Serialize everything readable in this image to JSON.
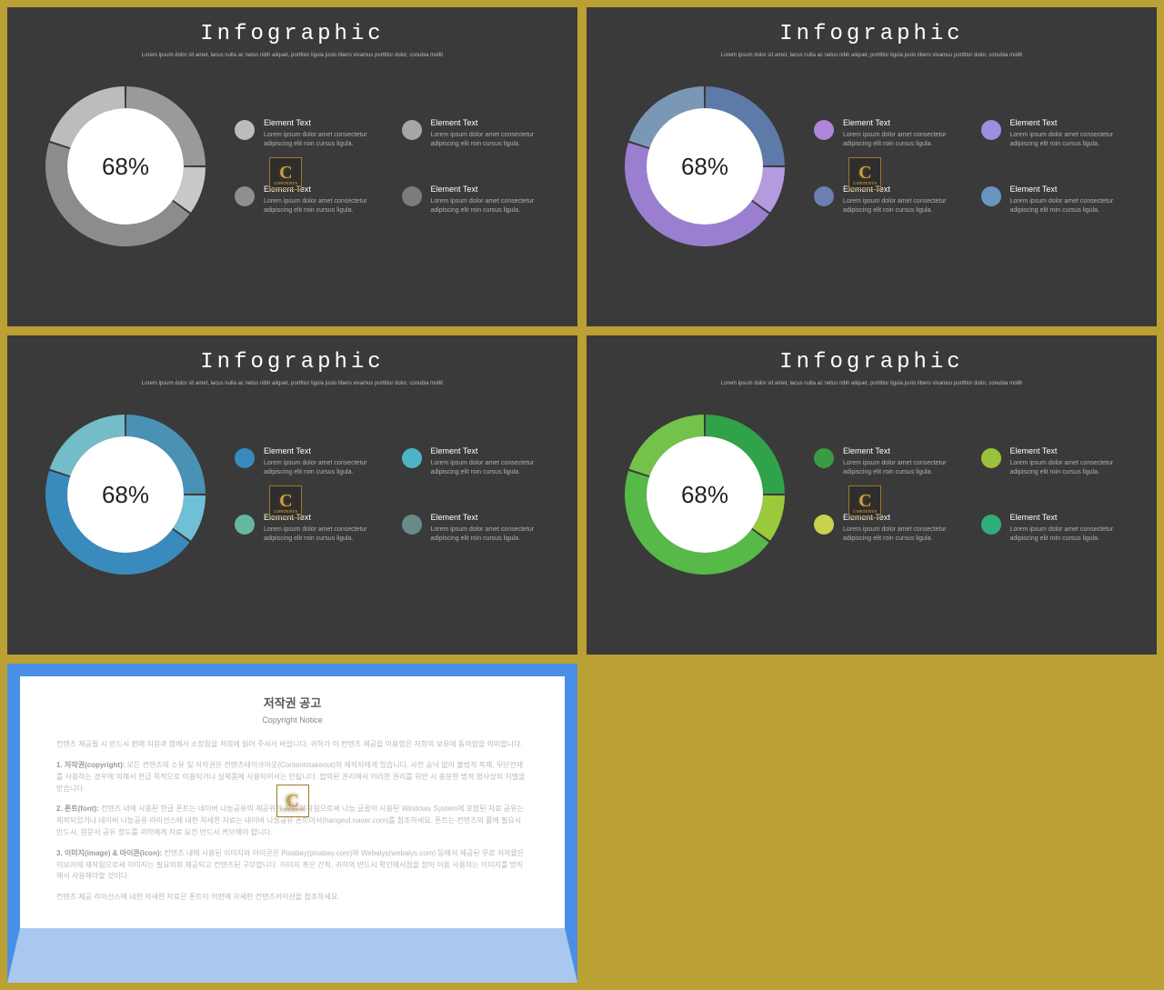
{
  "page_background": "#bba033",
  "slide_background": "#3a3a3a",
  "title": "Infographic",
  "title_font": "Courier New",
  "title_color": "#ffffff",
  "title_fontsize": 24,
  "subtitle": "Lorem ipsum dolor sit amet, lacus nulla ac netus nibh aliquet, porttitor ligula justo libero vivamus porttitor dolor, conubia mollit",
  "subtitle_color": "#bdbdbd",
  "donut": {
    "center_label": "68%",
    "segment_values": [
      25,
      10,
      45,
      20
    ],
    "inner_fill": "#ffffff",
    "outer_radius": 88,
    "inner_radius": 64,
    "gap_deg": 1.5,
    "label_fontsize": 26,
    "label_color": "#222222"
  },
  "item_title": "Element Text",
  "item_body": "Lorem ipsum dolor amet consectetur adipiscing elit roin cursus ligula.",
  "item_title_color": "#ffffff",
  "item_body_color": "#b0b0b0",
  "dot_size": 22,
  "slides": [
    {
      "id": "grey",
      "segment_colors": [
        "#9a9a9a",
        "#c8c8c8",
        "#8c8c8c",
        "#bcbcbc"
      ],
      "dot_colors": [
        "#bcbcbc",
        "#a6a6a6",
        "#8f8f8f",
        "#7c7c7c"
      ]
    },
    {
      "id": "purple",
      "segment_colors": [
        "#5d7aa8",
        "#b49adf",
        "#9a7fd1",
        "#7a98b5"
      ],
      "dot_colors": [
        "#b084d8",
        "#9a8fe0",
        "#6a80b0",
        "#6b95c0"
      ]
    },
    {
      "id": "blue",
      "segment_colors": [
        "#4a92b5",
        "#6fc0d6",
        "#3a8bbd",
        "#74bcc7"
      ],
      "dot_colors": [
        "#3a8bbd",
        "#4fb3c7",
        "#66b7a2",
        "#6a8a8a"
      ]
    },
    {
      "id": "green",
      "segment_colors": [
        "#2fa24a",
        "#9ac93b",
        "#57b948",
        "#73c24a"
      ],
      "dot_colors": [
        "#3a9a46",
        "#9bc23c",
        "#c8d24a",
        "#2fae7a"
      ]
    }
  ],
  "watermark": {
    "letter": "C",
    "border_color": "#9a7a2a",
    "text_color": "#c9a04a"
  },
  "copyright": {
    "outer_border_top": "#4a8fe7",
    "outer_border_bottom": "#a8c8ef",
    "title_ko": "저작권 공고",
    "title_en": "Copyright Notice",
    "p1": "컨텐츠 제공될 시 반드시 판매 지원과 함께서 소장됨을 저희에 읽어 주셔서 바랍니다, 귀하가 이 컨텐츠 제공을 이용함은 저희의 보유에 동의함을 의미합니다.",
    "p2_label": "1. 저작권(copyright):",
    "p2": "모든 컨텐츠의 소유 및 저작권은 컨텐츠테이크아웃(Contentstakeout)의 제작자에게 있습니다. 사전 승낙 없이 불법적 복제, 무단전재를 사용하는 경우에 의해서 현금 목적으로 이용되거나 실제품에 사용되어서는 안됩니다. 합의된 권리에서 이러한 권리를 위반 시 충분한 법적 형사상의 처벌을 받습니다.",
    "p3_label": "2. 폰트(font):",
    "p3": "컨텐츠 내에 사용된 한글 폰트는 네이버 나눔공유의 제공위한 자료 제작됨으로써 나눔 글꼴이 사용된 Windows System에 포함된 자료 공유는 제작되었거나 네이버 나눔공유 라이선스에 내한 자세한 자료는 네이버 나눔공유 폰트이서(hangeul.naver.com)를 참조하세요. 폰트는 컨텐츠의 활에 필요시 반드시, 원문서 공유 정도를 귀하에게 자료 요건 반드시 커브해야 합니다.",
    "p4_label": "3. 이미지(image) & 아이콘(icon):",
    "p4": "컨텐츠 내에 사용된 이미지와 아이콘은 Pixabay(pixabay.com)와 Webalys(webalys.com) 등에서 제공된 무료 저작물은 이보자에 제작됨으로써 이미지는 필요의회 제공되고 컨텐츠된 구부합니다. 이미지 혹은 간척, 귀하의 반드시 확인에서점을 잡아 이용 사용자는 이미지를 방직해서 사용해야할 것이다.",
    "p5": "컨텐츠 제공 라이선스에 내한 자세한 자료은 폰트이 어떤에 자세한 컨텐츠커이션을 참조하세요."
  }
}
